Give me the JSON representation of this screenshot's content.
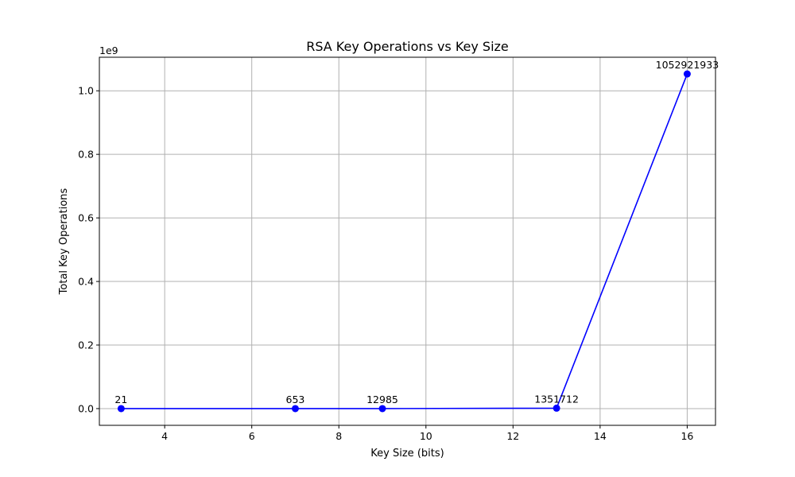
{
  "chart_data": {
    "type": "line",
    "title": "RSA Key Operations vs Key Size",
    "xlabel": "Key Size (bits)",
    "ylabel": "Total Key Operations",
    "y_offset_label": "1e9",
    "xlim": [
      2.5,
      16.65
    ],
    "ylim": [
      -52646096,
      1105568029
    ],
    "x_ticks": [
      4,
      6,
      8,
      10,
      12,
      14,
      16
    ],
    "x_tick_labels": [
      "4",
      "6",
      "8",
      "10",
      "12",
      "14",
      "16"
    ],
    "y_ticks": [
      0,
      200000000,
      400000000,
      600000000,
      800000000,
      1000000000
    ],
    "y_tick_labels": [
      "0.0",
      "0.2",
      "0.4",
      "0.6",
      "0.8",
      "1.0"
    ],
    "grid": true,
    "series": [
      {
        "color": "#0000ff",
        "marker": "circle",
        "x": [
          3,
          7,
          9,
          13,
          16
        ],
        "y": [
          21,
          653,
          12985,
          1351712,
          1052921933
        ],
        "labels": [
          "21",
          "653",
          "12985",
          "1351712",
          "1052921933"
        ]
      }
    ]
  }
}
